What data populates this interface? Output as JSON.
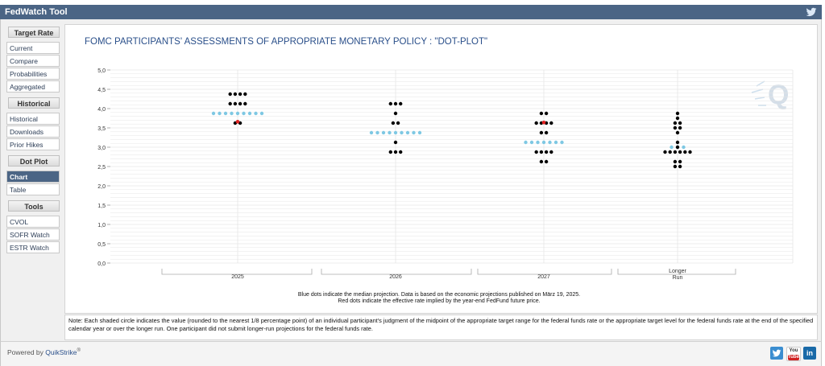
{
  "app": {
    "title": "FedWatch Tool"
  },
  "sidebar": {
    "sections": [
      {
        "heading": "Target Rate",
        "items": [
          {
            "label": "Current"
          },
          {
            "label": "Compare"
          },
          {
            "label": "Probabilities"
          },
          {
            "label": "Aggregated"
          }
        ]
      },
      {
        "heading": "Historical",
        "items": [
          {
            "label": "Historical"
          },
          {
            "label": "Downloads"
          },
          {
            "label": "Prior Hikes"
          }
        ]
      },
      {
        "heading": "Dot Plot",
        "items": [
          {
            "label": "Chart"
          },
          {
            "label": "Table"
          }
        ]
      },
      {
        "heading": "Tools",
        "items": [
          {
            "label": "CVOL"
          },
          {
            "label": "SOFR Watch"
          },
          {
            "label": "ESTR Watch"
          }
        ]
      }
    ],
    "active_item": "Chart"
  },
  "chart_data": {
    "type": "scatter",
    "title": "FOMC PARTICIPANTS' ASSESSMENTS OF APPROPRIATE MONETARY POLICY : \"DOT-PLOT\"",
    "ylim": [
      0,
      5
    ],
    "yticks": [
      "0,0",
      "0,5",
      "1,0",
      "1,5",
      "2,0",
      "2,5",
      "3,0",
      "3,5",
      "4,0",
      "4,5",
      "5,0"
    ],
    "grid": true,
    "categories": [
      "2025",
      "2026",
      "2027",
      "Longer Run"
    ],
    "category_labels": [
      [
        "2025"
      ],
      [
        "2026"
      ],
      [
        "2027"
      ],
      [
        "Longer",
        "Run"
      ]
    ],
    "participant_dots": [
      [
        {
          "y": 4.375,
          "n": 4
        },
        {
          "y": 4.125,
          "n": 4
        },
        {
          "y": 3.625,
          "n": 2
        }
      ],
      [
        {
          "y": 4.125,
          "n": 3
        },
        {
          "y": 3.875,
          "n": 1
        },
        {
          "y": 3.625,
          "n": 2
        },
        {
          "y": 3.125,
          "n": 1
        },
        {
          "y": 2.875,
          "n": 3
        }
      ],
      [
        {
          "y": 3.875,
          "n": 2
        },
        {
          "y": 3.625,
          "n": 4
        },
        {
          "y": 3.375,
          "n": 2
        },
        {
          "y": 2.875,
          "n": 4
        },
        {
          "y": 2.625,
          "n": 2
        }
      ],
      [
        {
          "y": 3.875,
          "n": 1
        },
        {
          "y": 3.75,
          "n": 1
        },
        {
          "y": 3.625,
          "n": 2
        },
        {
          "y": 3.5,
          "n": 2
        },
        {
          "y": 3.375,
          "n": 1
        },
        {
          "y": 3.125,
          "n": 1
        },
        {
          "y": 3.0,
          "n": 1
        },
        {
          "y": 2.875,
          "n": 6
        },
        {
          "y": 2.625,
          "n": 2
        },
        {
          "y": 2.5,
          "n": 2
        }
      ]
    ],
    "median": [
      {
        "y": 3.875,
        "n": 9
      },
      {
        "y": 3.375,
        "n": 9
      },
      {
        "y": 3.125,
        "n": 7
      },
      {
        "y": 3.0,
        "n": 3
      }
    ],
    "effective_rate": [
      {
        "y": 3.66
      },
      null,
      {
        "y": 3.64
      },
      null
    ],
    "colors": {
      "participant": "#000000",
      "median": "#7ec8e3",
      "effective": "#e02020",
      "grid": "#e6e6e6"
    },
    "footnote_lines": [
      "Blue dots indicate the median projection. Data is based on the economic projections published on März 19, 2025.",
      "Red dots indicate the effective rate implied by the year-end FedFund future price."
    ]
  },
  "note": "Note: Each shaded circle indicates the value (rounded to the nearest 1/8 percentage point) of an individual participant's judgment of the midpoint of the appropriate target range for the federal funds rate or the appropriate target level for the federal funds rate at the end of the specified calendar year or over the longer run. One participant did not submit longer-run projections for the federal funds rate.",
  "footer": {
    "powered_prefix": "Powered by ",
    "powered_brand": "QuikStrike",
    "powered_mark": "®"
  },
  "icons": {
    "twitter": "twitter-icon",
    "youtube": "youtube-icon",
    "linkedin": "linkedin-icon",
    "watermark": "quikstrike-logo"
  },
  "social": {
    "youtube_top": "You",
    "youtube_bottom": "Tube",
    "linkedin": "in"
  }
}
